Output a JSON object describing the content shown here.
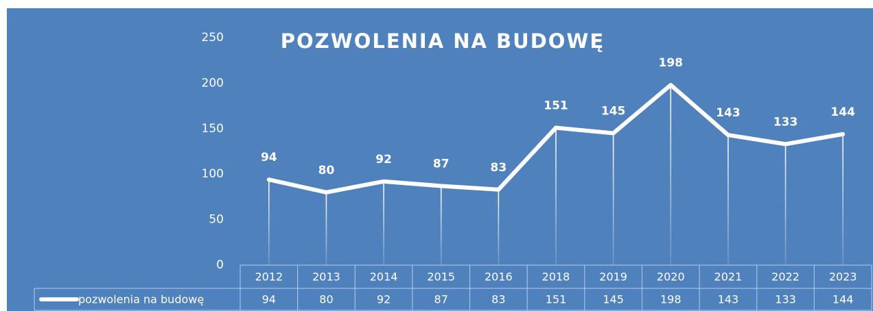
{
  "chart_data": {
    "type": "line",
    "title": "POZWOLENIA NA BUDOWĘ",
    "categories": [
      "2012",
      "2013",
      "2014",
      "2015",
      "2016",
      "2018",
      "2019",
      "2020",
      "2021",
      "2022",
      "2023"
    ],
    "series": [
      {
        "name": "pozwolenia na budowę",
        "color": "#ffffff",
        "values": [
          94,
          80,
          92,
          87,
          83,
          151,
          145,
          198,
          143,
          133,
          144
        ]
      }
    ],
    "ylim": [
      0,
      250
    ],
    "yticks": [
      0,
      50,
      100,
      150,
      200,
      250
    ],
    "data_labels": true,
    "drop_lines": true,
    "data_table": true
  }
}
